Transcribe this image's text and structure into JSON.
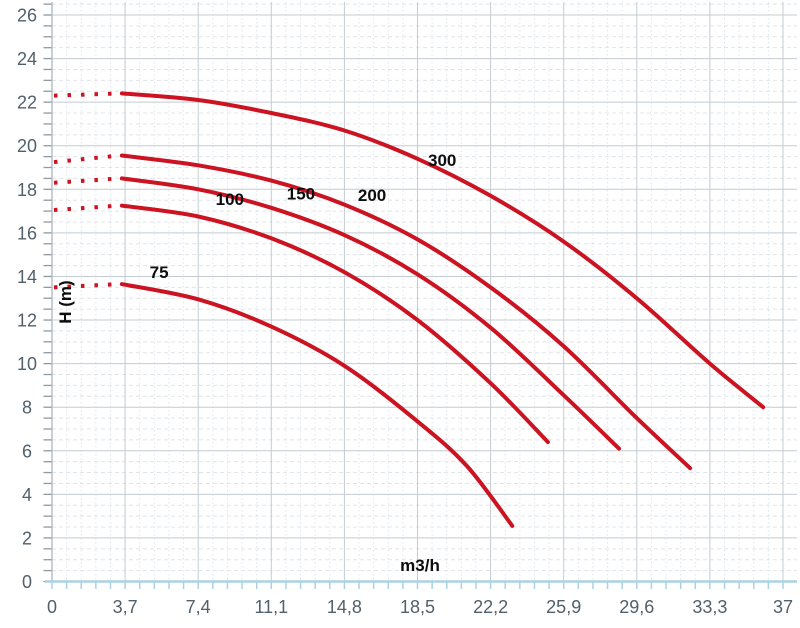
{
  "chart_data": {
    "type": "line",
    "description": "Pump performance curves, head H (m) versus flow rate m3/h, five pump models",
    "xlabel": "m3/h",
    "ylabel": "H (m)",
    "xlim": [
      0,
      37
    ],
    "ylim": [
      0,
      26
    ],
    "grid": "major and minor on",
    "x_ticks": {
      "values": [
        0,
        3.7,
        7.4,
        11.1,
        14.8,
        18.5,
        22.2,
        25.9,
        29.6,
        33.3,
        37
      ],
      "labels": [
        "0",
        "3,7",
        "7,4",
        "11,1",
        "14,8",
        "18,5",
        "22,2",
        "25,9",
        "29,6",
        "33,3",
        "37"
      ],
      "minor_step": 0.74
    },
    "y_ticks": {
      "values": [
        0,
        2,
        4,
        6,
        8,
        10,
        12,
        14,
        16,
        18,
        20,
        22,
        24,
        26
      ],
      "labels": [
        "0",
        "2",
        "4",
        "6",
        "8",
        "10",
        "12",
        "14",
        "16",
        "18",
        "20",
        "22",
        "24",
        "26"
      ],
      "minor_step": 0.5
    },
    "series": [
      {
        "name": "75",
        "shutoff_dotted": {
          "q0": 0,
          "h0": 13.5,
          "q1": 3.4,
          "h1": 13.65
        },
        "points": [
          [
            3.54,
            13.65
          ],
          [
            7.4,
            12.95
          ],
          [
            11.1,
            11.7
          ],
          [
            14.8,
            9.9
          ],
          [
            18.5,
            7.35
          ],
          [
            21.0,
            5.3
          ],
          [
            23.3,
            2.55
          ]
        ],
        "label_pos": {
          "q": 5.42,
          "h": 14.2
        }
      },
      {
        "name": "100",
        "shutoff_dotted": {
          "q0": 0,
          "h0": 17.05,
          "q1": 3.4,
          "h1": 17.25
        },
        "points": [
          [
            3.54,
            17.25
          ],
          [
            7.4,
            16.75
          ],
          [
            11.1,
            15.75
          ],
          [
            14.8,
            14.2
          ],
          [
            18.5,
            12.0
          ],
          [
            22.2,
            9.1
          ],
          [
            25.1,
            6.4
          ]
        ],
        "label_pos": {
          "q": 9.0,
          "h": 17.55
        }
      },
      {
        "name": "150",
        "shutoff_dotted": {
          "q0": 0,
          "h0": 18.3,
          "q1": 3.4,
          "h1": 18.5
        },
        "points": [
          [
            3.54,
            18.5
          ],
          [
            7.4,
            18.0
          ],
          [
            11.1,
            17.15
          ],
          [
            14.8,
            15.9
          ],
          [
            18.5,
            14.1
          ],
          [
            22.2,
            11.65
          ],
          [
            25.9,
            8.55
          ],
          [
            28.7,
            6.1
          ]
        ],
        "label_pos": {
          "q": 12.6,
          "h": 17.8
        }
      },
      {
        "name": "200",
        "shutoff_dotted": {
          "q0": 0,
          "h0": 19.25,
          "q1": 3.4,
          "h1": 19.55
        },
        "points": [
          [
            3.54,
            19.55
          ],
          [
            7.4,
            19.1
          ],
          [
            11.1,
            18.4
          ],
          [
            14.8,
            17.3
          ],
          [
            18.5,
            15.7
          ],
          [
            22.2,
            13.5
          ],
          [
            25.9,
            10.8
          ],
          [
            29.6,
            7.5
          ],
          [
            32.3,
            5.2
          ]
        ],
        "label_pos": {
          "q": 16.2,
          "h": 17.75
        }
      },
      {
        "name": "300",
        "shutoff_dotted": {
          "q0": 0,
          "h0": 22.3,
          "q1": 3.4,
          "h1": 22.4
        },
        "points": [
          [
            3.54,
            22.4
          ],
          [
            7.4,
            22.1
          ],
          [
            11.1,
            21.5
          ],
          [
            14.8,
            20.7
          ],
          [
            18.5,
            19.4
          ],
          [
            22.2,
            17.7
          ],
          [
            25.9,
            15.6
          ],
          [
            29.6,
            13.0
          ],
          [
            33.3,
            10.0
          ],
          [
            36.0,
            8.0
          ]
        ],
        "label_pos": {
          "q": 19.75,
          "h": 19.35
        }
      }
    ],
    "colors": {
      "curve": "#cc1322",
      "axis_number_text": "#52606b",
      "curve_label_text": "#0d0d0d",
      "grid_major": "#c4ccd2",
      "grid_minor": "#e0e5e9",
      "x_axis_line": "#abd2e3",
      "y_axis_line": "#b6c0c7",
      "y_tick": "#8f99a1"
    },
    "legend_position": "labels on curves"
  }
}
